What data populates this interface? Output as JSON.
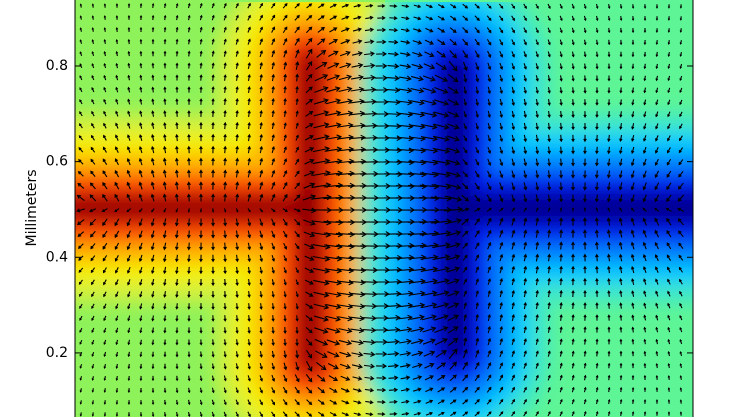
{
  "chart_data": {
    "type": "contour",
    "ylabel": "Millimeters",
    "ylim": [
      0.066,
      0.938
    ],
    "yticks": [
      0.2,
      0.4,
      0.6,
      0.8
    ]
  }
}
